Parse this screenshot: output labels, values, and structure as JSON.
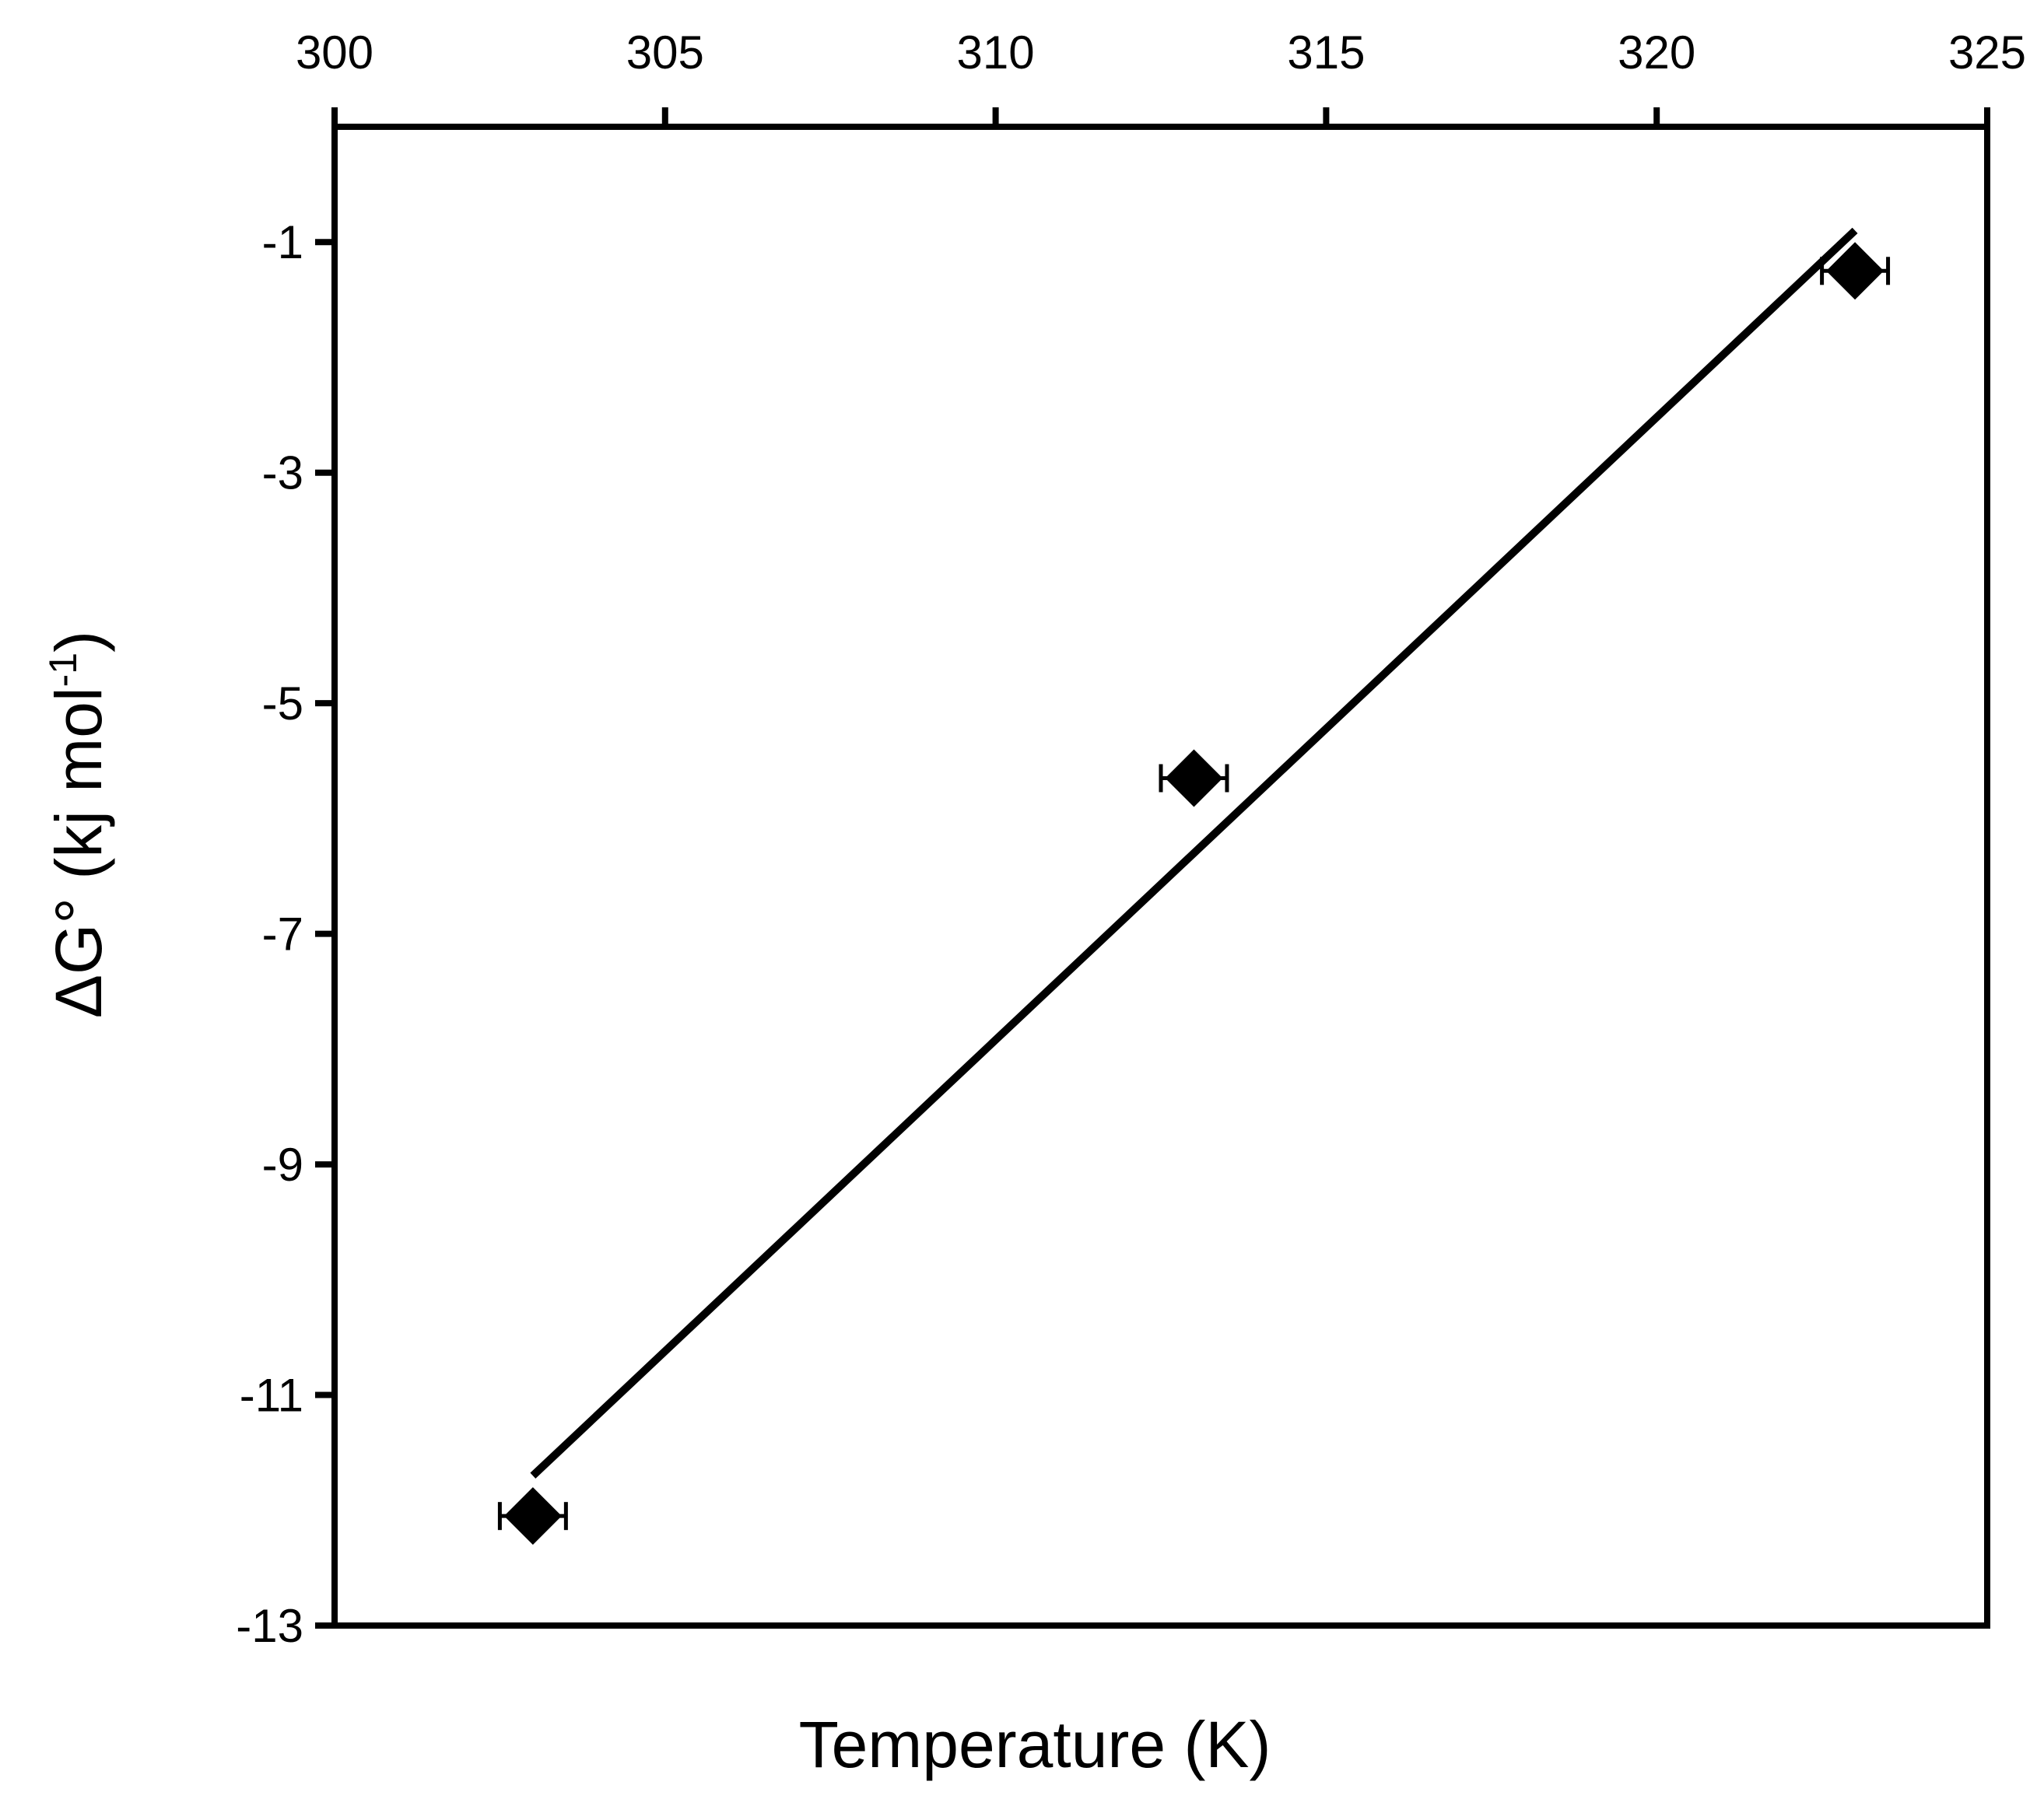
{
  "chart_data": {
    "type": "scatter",
    "title": "",
    "xlabel": "Temperature (K)",
    "ylabel_parts": {
      "main": "ΔG° (kj mol",
      "sup": "-1",
      "close": ")"
    },
    "xlim": [
      300,
      325
    ],
    "ylim": [
      -13,
      0
    ],
    "x_axis_position": "top",
    "x_ticks": [
      300,
      305,
      310,
      315,
      320,
      325
    ],
    "y_ticks": [
      -1,
      -3,
      -5,
      -7,
      -9,
      -11,
      -13
    ],
    "grid": false,
    "legend": "none",
    "series": [
      {
        "marker": "diamond",
        "color": "#000000",
        "points": [
          {
            "x": 303,
            "y": -12.05,
            "xerr": 0.5
          },
          {
            "x": 313,
            "y": -5.65,
            "xerr": 0.5
          },
          {
            "x": 323,
            "y": -1.25,
            "xerr": 0.5
          }
        ]
      }
    ],
    "trendline": {
      "color": "#000000",
      "x": [
        303,
        323
      ],
      "y": [
        -11.7,
        -0.9
      ]
    }
  }
}
